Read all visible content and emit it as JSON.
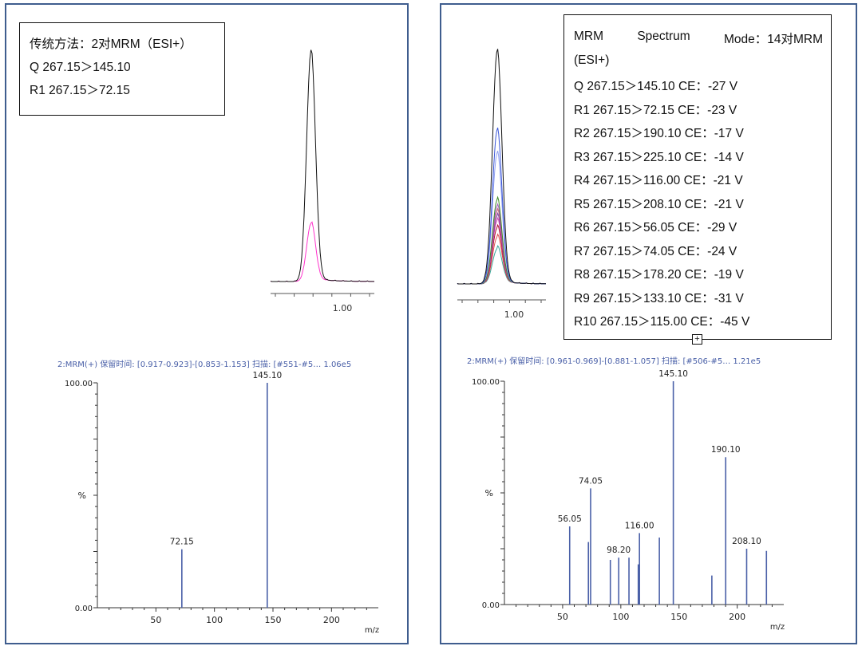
{
  "chart_data": [
    {
      "type": "line",
      "panel": "left",
      "subtitle": "chromatogram",
      "tick_labels": [
        "1.00"
      ],
      "series": [
        {
          "name": "Q 267.15>145.10",
          "color": "#111111",
          "peak_rel": 1.0
        },
        {
          "name": "R1 267.15>72.15",
          "color": "#ff33cc",
          "peak_rel": 0.25
        }
      ]
    },
    {
      "type": "bar",
      "panel": "left",
      "subtitle": "product ion spectrum",
      "title": "2:MRM(+) 保留时间: [0.917-0.923]-[0.853-1.153] 扫描: [#551-#5…  1.06e5",
      "xlabel": "m/z",
      "ylabel": "%",
      "xlim": [
        0,
        240
      ],
      "ylim": [
        0,
        100
      ],
      "x_ticks": [
        "50",
        "100",
        "150",
        "200"
      ],
      "y_ticks": [
        "0.00",
        "100.00"
      ],
      "peaks": [
        {
          "mz": 72.15,
          "value": 26,
          "label": "72.15"
        },
        {
          "mz": 145.1,
          "value": 100,
          "label": "145.10"
        }
      ]
    },
    {
      "type": "line",
      "panel": "right",
      "subtitle": "chromatogram",
      "tick_labels": [
        "1.00"
      ],
      "series": [
        {
          "name": "Q",
          "color": "#111111",
          "peak_rel": 1.0
        },
        {
          "name": "R1",
          "color": "#3a56d8",
          "peak_rel": 0.66
        },
        {
          "name": "R2",
          "color": "#8f9ff0",
          "peak_rel": 0.56
        },
        {
          "name": "R3",
          "color": "#3c8a26",
          "peak_rel": 0.36
        },
        {
          "name": "R4",
          "color": "#a15dbb",
          "peak_rel": 0.33
        },
        {
          "name": "R5",
          "color": "#cc6677",
          "peak_rel": 0.31
        },
        {
          "name": "R6",
          "color": "#7a3fa8",
          "peak_rel": 0.29
        },
        {
          "name": "R7",
          "color": "#d946b2",
          "peak_rel": 0.27
        },
        {
          "name": "R8",
          "color": "#b0102a",
          "peak_rel": 0.24
        },
        {
          "name": "R9",
          "color": "#e05050",
          "peak_rel": 0.2
        },
        {
          "name": "R10",
          "color": "#3aa79a",
          "peak_rel": 0.15
        }
      ]
    },
    {
      "type": "bar",
      "panel": "right",
      "subtitle": "product ion spectrum",
      "title": "2:MRM(+) 保留时间: [0.961-0.969]-[0.881-1.057] 扫描: [#506-#5…  1.21e5",
      "xlabel": "m/z",
      "ylabel": "%",
      "xlim": [
        0,
        240
      ],
      "ylim": [
        0,
        100
      ],
      "x_ticks": [
        "50",
        "100",
        "150",
        "200"
      ],
      "y_ticks": [
        "0.00",
        "100.00"
      ],
      "peaks": [
        {
          "mz": 56.05,
          "value": 35,
          "label": "56.05"
        },
        {
          "mz": 72.15,
          "value": 28,
          "label": ""
        },
        {
          "mz": 74.05,
          "value": 52,
          "label": "74.05"
        },
        {
          "mz": 91.0,
          "value": 20,
          "label": ""
        },
        {
          "mz": 98.2,
          "value": 21,
          "label": "98.20"
        },
        {
          "mz": 107.0,
          "value": 21,
          "label": ""
        },
        {
          "mz": 115.0,
          "value": 18,
          "label": ""
        },
        {
          "mz": 116.0,
          "value": 32,
          "label": "116.00"
        },
        {
          "mz": 133.1,
          "value": 30,
          "label": ""
        },
        {
          "mz": 145.1,
          "value": 100,
          "label": "145.10"
        },
        {
          "mz": 178.2,
          "value": 13,
          "label": ""
        },
        {
          "mz": 190.1,
          "value": 66,
          "label": "190.10"
        },
        {
          "mz": 208.1,
          "value": 25,
          "label": "208.10"
        },
        {
          "mz": 225.1,
          "value": 24,
          "label": ""
        }
      ]
    }
  ],
  "legend_left": {
    "line1": "传统方法：2对MRM（ESI+）",
    "line2": "Q 267.15＞145.10",
    "line3": "R1 267.15＞72.15"
  },
  "legend_right": {
    "title_words": [
      "MRM",
      "Spectrum",
      "Mode：14对MRM"
    ],
    "title_cont": "(ESI+)",
    "lines": [
      "Q 267.15＞145.10 CE：-27 V",
      "R1 267.15＞72.15 CE：-23 V",
      "R2 267.15＞190.10 CE：-17 V",
      "R3 267.15＞225.10 CE：-14 V",
      "R4 267.15＞116.00 CE：-21 V",
      "R5 267.15＞208.10 CE：-21 V",
      "R6 267.15＞56.05 CE：-29 V",
      "R7 267.15＞74.05 CE：-24 V",
      "R8 267.15＞178.20 CE：-19 V",
      "R9 267.15＞133.10 CE：-31 V",
      "R10 267.15＞115.00 CE：-45 V"
    ]
  }
}
